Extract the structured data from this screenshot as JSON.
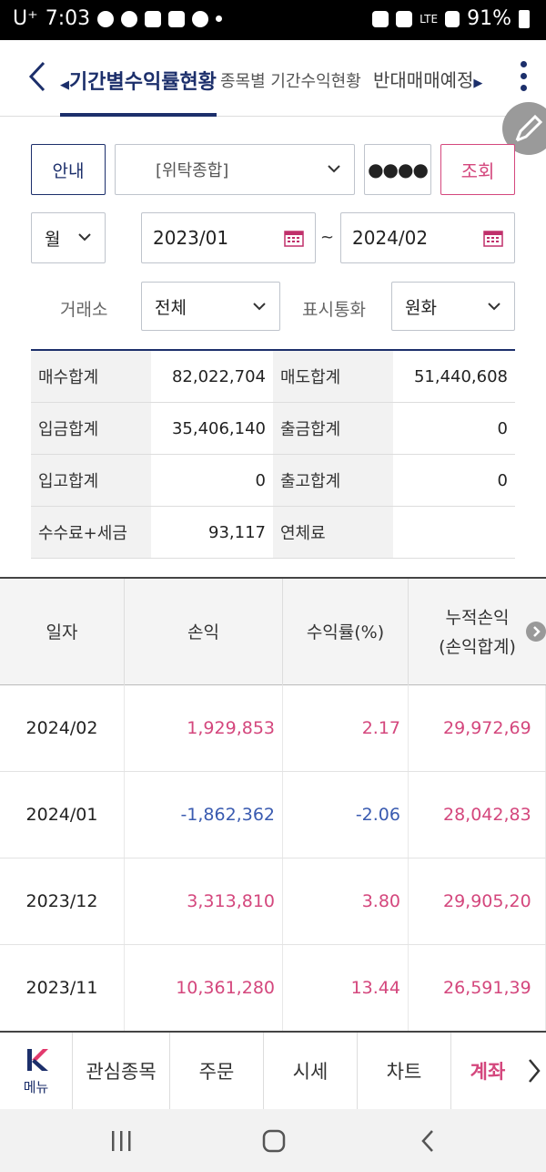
{
  "status_bar": {
    "carrier": "U⁺",
    "time": "7:03",
    "network": "LTE",
    "battery": "91%"
  },
  "nav": {
    "tabs": [
      {
        "label": "기간별수익률현황"
      },
      {
        "label": "종목별 기간수익현황"
      },
      {
        "label": "반대매매예정"
      }
    ]
  },
  "controls": {
    "guide_label": "안내",
    "account": "[위탁종합]",
    "password_mask": "●●●●",
    "query_label": "조회",
    "period_unit": "월",
    "date_from": "2023/01",
    "date_separator": "~",
    "date_to": "2024/02",
    "exchange_label": "거래소",
    "exchange_value": "전체",
    "currency_label": "표시통화",
    "currency_value": "원화"
  },
  "summary": [
    {
      "l1": "매수합계",
      "v1": "82,022,704",
      "l2": "매도합계",
      "v2": "51,440,608"
    },
    {
      "l1": "입금합계",
      "v1": "35,406,140",
      "l2": "출금합계",
      "v2": "0"
    },
    {
      "l1": "입고합계",
      "v1": "0",
      "l2": "출고합계",
      "v2": "0"
    },
    {
      "l1": "수수료+세금",
      "v1": "93,117",
      "l2": "연체료",
      "v2": ""
    }
  ],
  "table": {
    "headers": {
      "date": "일자",
      "pnl": "손익",
      "rate": "수익률(%)",
      "cum_line1": "누적손익",
      "cum_line2": "(손익합계)"
    },
    "rows": [
      {
        "date": "2024/02",
        "pnl": "1,929,853",
        "rate": "2.17",
        "cum": "29,972,69",
        "sign": "pos"
      },
      {
        "date": "2024/01",
        "pnl": "-1,862,362",
        "rate": "-2.06",
        "cum": "28,042,83",
        "sign": "neg"
      },
      {
        "date": "2023/12",
        "pnl": "3,313,810",
        "rate": "3.80",
        "cum": "29,905,20",
        "sign": "pos"
      },
      {
        "date": "2023/11",
        "pnl": "10,361,280",
        "rate": "13.44",
        "cum": "26,591,39",
        "sign": "pos"
      }
    ]
  },
  "bottom_menu": {
    "menu_label": "메뉴",
    "items": [
      "관심종목",
      "주문",
      "시세",
      "차트",
      "계좌"
    ]
  },
  "colors": {
    "navy": "#1c2f6b",
    "positive": "#d4477d",
    "negative": "#3a5bb0"
  }
}
